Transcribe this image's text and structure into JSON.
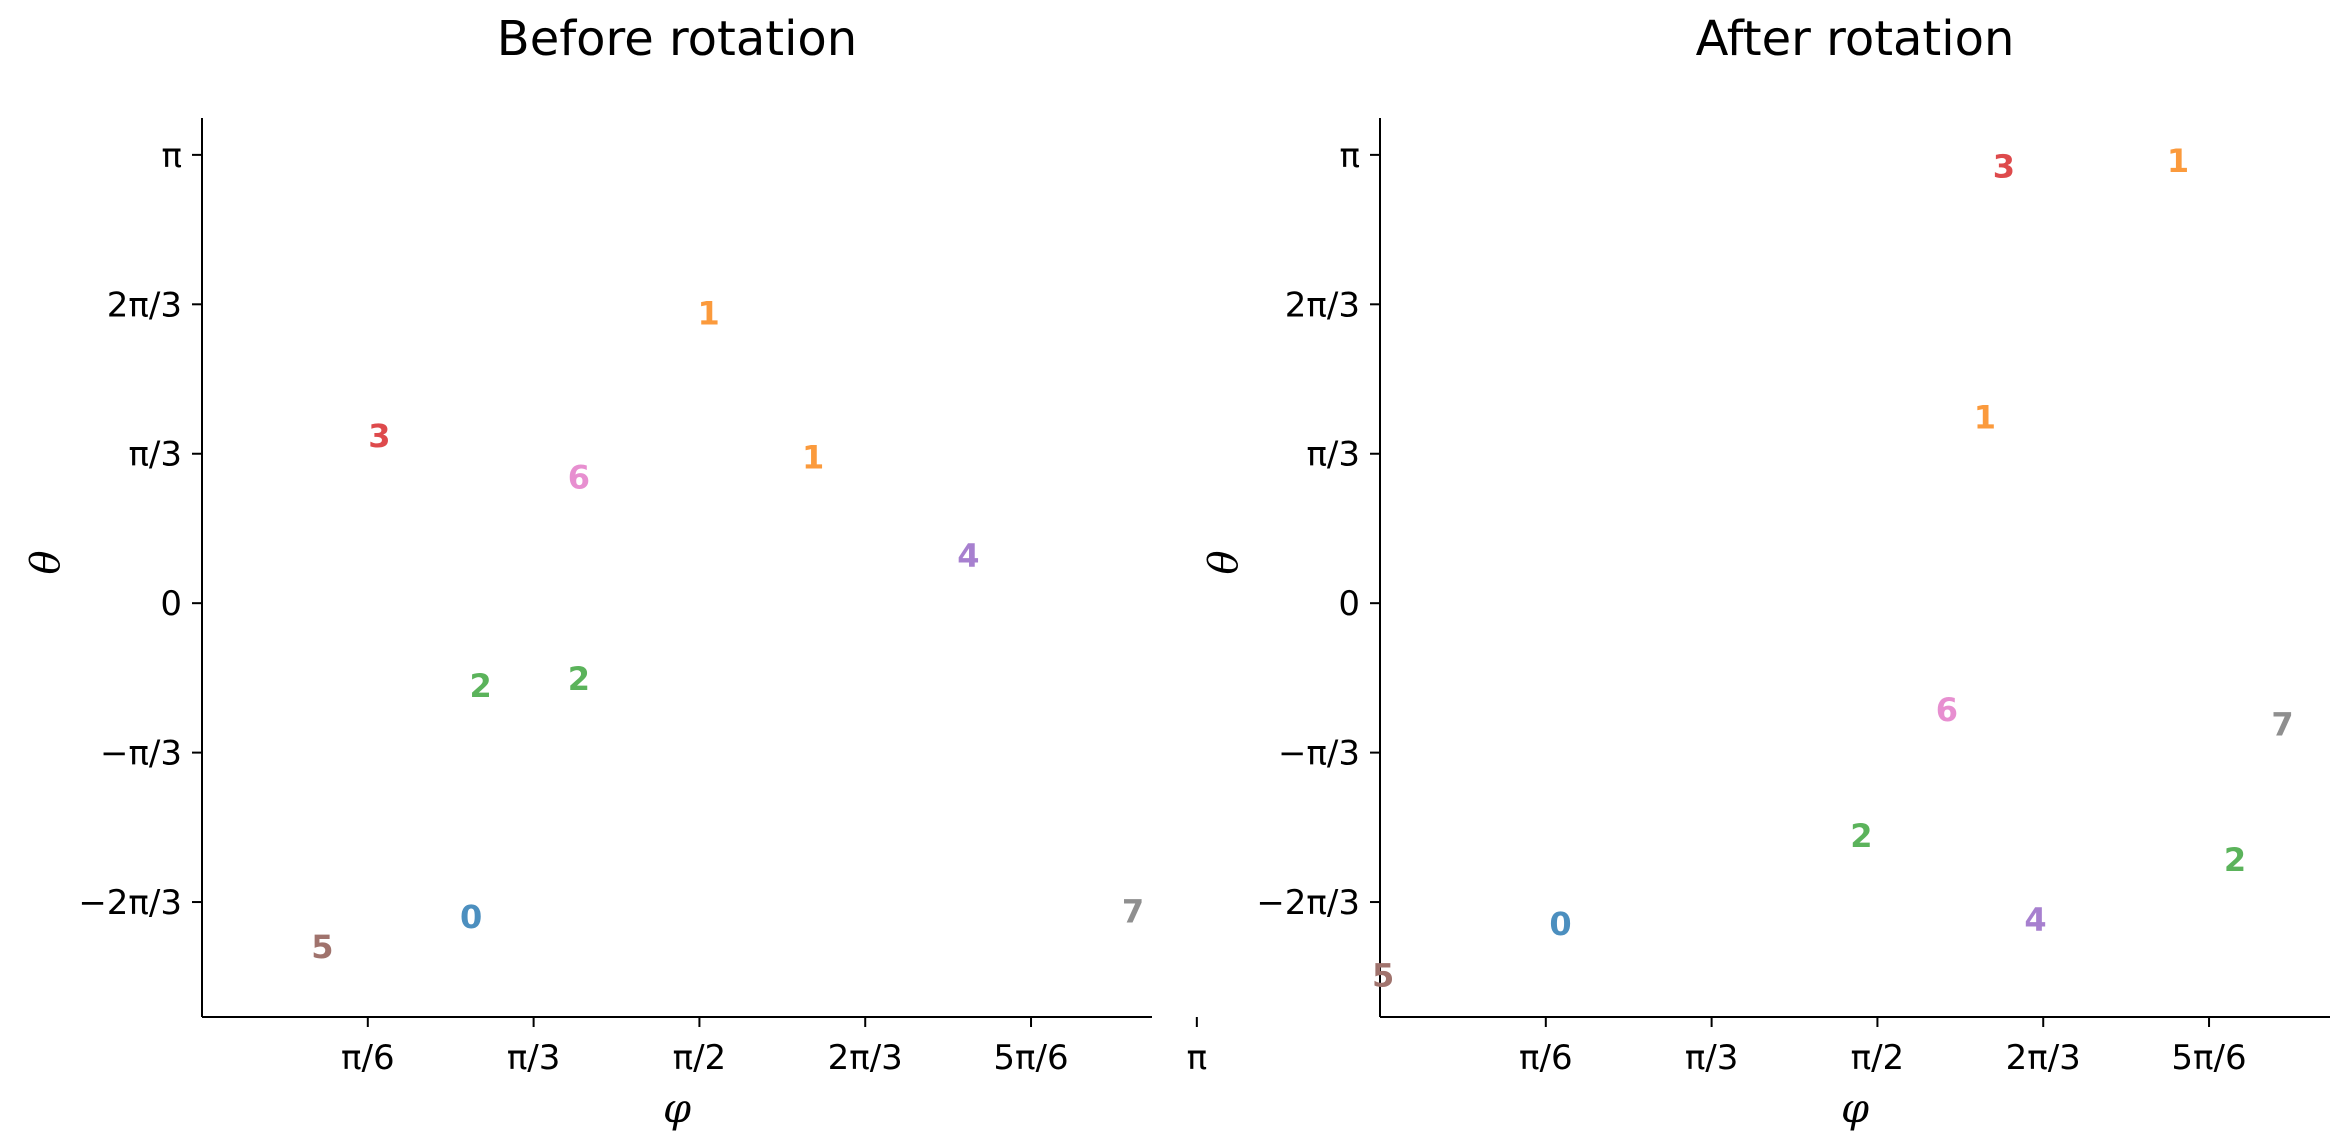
{
  "chart_data": [
    {
      "type": "scatter",
      "title": "Before rotation",
      "xlabel": "φ",
      "ylabel": "θ",
      "xlim": [
        0.0,
        3.0
      ],
      "ylim": [
        -2.9,
        3.4
      ],
      "xticks": [
        0.5236,
        1.0472,
        1.5708,
        2.0944,
        2.618,
        3.1416
      ],
      "xtick_labels": [
        "π/6",
        "π/3",
        "π/2",
        "2π/3",
        "5π/6",
        "π"
      ],
      "yticks": [
        -2.0944,
        -1.0472,
        0.0,
        1.0472,
        2.0944,
        3.1416
      ],
      "ytick_labels": [
        "−2π/3",
        "−π/3",
        "0",
        "π/3",
        "2π/3",
        "π"
      ],
      "grid": false,
      "points": [
        {
          "label": "0",
          "x": 0.85,
          "y": -2.2,
          "color": "#4c8fbf"
        },
        {
          "label": "1",
          "x": 1.6,
          "y": 2.03,
          "color": "#fb9a3c"
        },
        {
          "label": "1",
          "x": 1.93,
          "y": 1.02,
          "color": "#fb9a3c"
        },
        {
          "label": "2",
          "x": 0.88,
          "y": -0.58,
          "color": "#5bb35b"
        },
        {
          "label": "2",
          "x": 1.19,
          "y": -0.53,
          "color": "#5bb35b"
        },
        {
          "label": "3",
          "x": 0.56,
          "y": 1.17,
          "color": "#de4a4c"
        },
        {
          "label": "4",
          "x": 2.42,
          "y": 0.33,
          "color": "#a780cf"
        },
        {
          "label": "5",
          "x": 0.38,
          "y": -2.41,
          "color": "#a0736d"
        },
        {
          "label": "6",
          "x": 1.19,
          "y": 0.88,
          "color": "#e78fd0"
        },
        {
          "label": "7",
          "x": 2.94,
          "y": -2.16,
          "color": "#8f8f8f"
        }
      ]
    },
    {
      "type": "scatter",
      "title": "After rotation",
      "xlabel": "φ",
      "ylabel": "θ",
      "xlim": [
        0.0,
        3.0
      ],
      "ylim": [
        -2.9,
        3.4
      ],
      "xticks": [
        0.5236,
        1.0472,
        1.5708,
        2.0944,
        2.618,
        3.1416
      ],
      "xtick_labels": [
        "π/6",
        "π/3",
        "π/2",
        "2π/3",
        "5π/6",
        "π"
      ],
      "yticks": [
        -2.0944,
        -1.0472,
        0.0,
        1.0472,
        2.0944,
        3.1416
      ],
      "ytick_labels": [
        "−2π/3",
        "−π/3",
        "0",
        "π/3",
        "2π/3",
        "π"
      ],
      "grid": false,
      "points": [
        {
          "label": "0",
          "x": 0.57,
          "y": -2.25,
          "color": "#4c8fbf"
        },
        {
          "label": "1",
          "x": 2.52,
          "y": 3.1,
          "color": "#fb9a3c"
        },
        {
          "label": "1",
          "x": 1.91,
          "y": 1.3,
          "color": "#fb9a3c"
        },
        {
          "label": "2",
          "x": 1.52,
          "y": -1.63,
          "color": "#5bb35b"
        },
        {
          "label": "2",
          "x": 2.7,
          "y": -1.8,
          "color": "#5bb35b"
        },
        {
          "label": "3",
          "x": 1.97,
          "y": 3.06,
          "color": "#de4a4c"
        },
        {
          "label": "4",
          "x": 2.07,
          "y": -2.22,
          "color": "#a780cf"
        },
        {
          "label": "5",
          "x": 0.01,
          "y": -2.61,
          "color": "#a0736d"
        },
        {
          "label": "6",
          "x": 1.79,
          "y": -0.75,
          "color": "#e78fd0"
        },
        {
          "label": "7",
          "x": 2.85,
          "y": -0.85,
          "color": "#8f8f8f"
        }
      ]
    }
  ]
}
